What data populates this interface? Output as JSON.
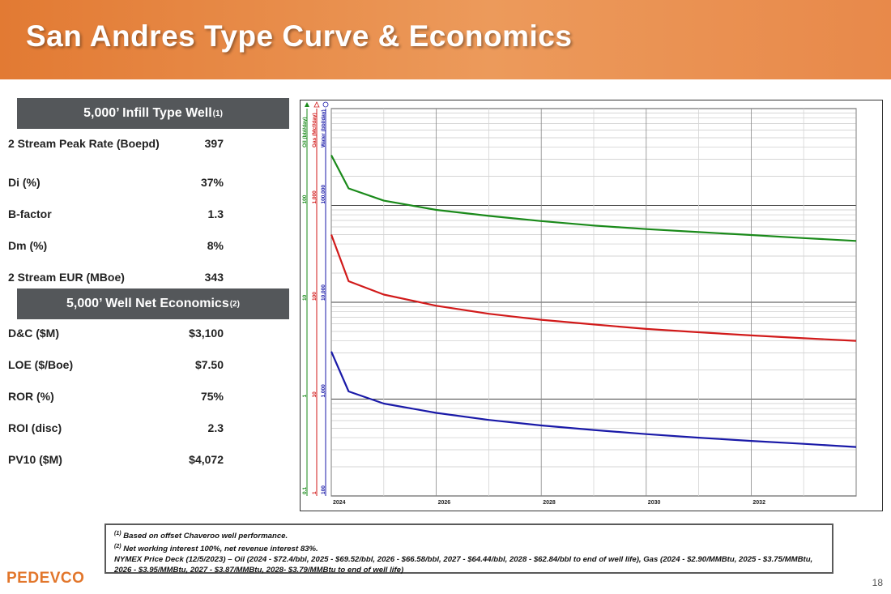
{
  "slide": {
    "title": "San Andres Type Curve & Economics",
    "page_number": "18",
    "logo_text": "PEDEVCO"
  },
  "type_well": {
    "header": "5,000’ Infill Type Well",
    "header_sup": "(1)",
    "rows": [
      {
        "label": "2 Stream Peak Rate (Boepd)",
        "value": "397"
      },
      {
        "label": "Di (%)",
        "value": "37%"
      },
      {
        "label": "B-factor",
        "value": "1.3"
      },
      {
        "label": "Dm (%)",
        "value": "8%"
      },
      {
        "label": "2 Stream EUR (MBoe)",
        "value": "343"
      }
    ]
  },
  "economics": {
    "header": "5,000’ Well Net Economics",
    "header_sup": "(2)",
    "rows": [
      {
        "label": "D&C ($M)",
        "value": "$3,100"
      },
      {
        "label": "LOE ($/Boe)",
        "value": "$7.50"
      },
      {
        "label": "ROR (%)",
        "value": "75%"
      },
      {
        "label": "ROI (disc)",
        "value": "2.3"
      },
      {
        "label": "PV10 ($M)",
        "value": "$4,072"
      }
    ]
  },
  "footnotes": {
    "note1_sup": "(1)",
    "note1": "Based on offset Chaveroo well performance.",
    "note2_sup": "(2)",
    "note2": "Net working interest 100%, net revenue interest 83%.",
    "note3": "NYMEX Price Deck (12/5/2023) – Oil (2024 - $72.4/bbl, 2025 - $69.52/bbl, 2026 - $66.58/bbl, 2027 - $64.44/bbl, 2028 - $62.84/bbl to end of well life), Gas (2024 - $2.90/MMBtu, 2025 - $3.75/MMBtu, 2026 - $3.95/MMBtu, 2027 - $3.87/MMBtu, 2028- $3.79/MMBtu to end of well life)"
  },
  "chart_data": {
    "type": "line",
    "log_scale_y": true,
    "grid": true,
    "x_ticks": [
      "2024",
      "2026",
      "2028",
      "2030",
      "2032"
    ],
    "xlim": [
      2024,
      2034
    ],
    "axes": [
      {
        "label": "Oil (bbl/day)",
        "color": "#1a8a1a",
        "ticks": [
          "0.1",
          "1",
          "10",
          "100"
        ]
      },
      {
        "label": "Gas (Mcf/day)",
        "color": "#d11a1a",
        "ticks": [
          "1",
          "10",
          "100",
          "1,000"
        ]
      },
      {
        "label": "Water (bbl/day)",
        "color": "#1a1aa8",
        "ticks": [
          "100",
          "1,000",
          "10,000",
          "100,000"
        ]
      }
    ],
    "series": [
      {
        "name": "Oil (bbl/day)",
        "color": "#1a8a1a",
        "axis_range": [
          0.1,
          1000
        ],
        "x": [
          2024.0,
          2024.33,
          2025.0,
          2026.0,
          2027.0,
          2028.0,
          2029.0,
          2030.0,
          2031.0,
          2032.0,
          2033.0,
          2034.0
        ],
        "y": [
          330,
          150,
          112,
          90,
          78,
          69,
          62,
          57,
          53,
          49.5,
          46,
          43
        ]
      },
      {
        "name": "Gas (Mcf/day)",
        "color": "#d11a1a",
        "axis_range": [
          1,
          10000
        ],
        "x": [
          2024.0,
          2024.33,
          2025.0,
          2026.0,
          2027.0,
          2028.0,
          2029.0,
          2030.0,
          2031.0,
          2032.0,
          2033.0,
          2034.0
        ],
        "y": [
          500,
          165,
          120,
          92,
          76,
          66,
          59,
          53,
          49,
          45.5,
          42.5,
          40
        ]
      },
      {
        "name": "Water (bbl/day)",
        "color": "#1a1aa8",
        "axis_range": [
          100,
          1000000
        ],
        "x": [
          2024.0,
          2024.33,
          2025.0,
          2026.0,
          2027.0,
          2028.0,
          2029.0,
          2030.0,
          2031.0,
          2032.0,
          2033.0,
          2034.0
        ],
        "y": [
          3100,
          1200,
          900,
          720,
          610,
          535,
          480,
          435,
          400,
          370,
          345,
          320
        ]
      }
    ]
  }
}
